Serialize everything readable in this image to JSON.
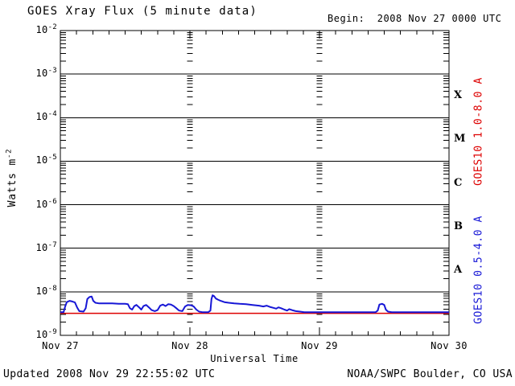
{
  "header": {
    "title": "GOES Xray Flux (5 minute data)",
    "begin": "Begin:  2008 Nov 27 0000 UTC"
  },
  "footer": {
    "updated": "Updated 2008 Nov 29 22:55:02 UTC",
    "source": "NOAA/SWPC Boulder, CO USA"
  },
  "chart_data": {
    "type": "line",
    "title": "GOES Xray Flux (5 minute data)",
    "xlabel": "Universal Time",
    "ylabel_base": "Watts m",
    "ylabel_exp": "-2",
    "grid": "horizontal-solid, log-minor-tick-columns-at-day-boundaries",
    "legend_position": "right-rotated",
    "x_axis": {
      "range_hours": 72,
      "minor_tick_hours": 3,
      "ticks": [
        {
          "label": "Nov 27",
          "hour": 0
        },
        {
          "label": "Nov 28",
          "hour": 24
        },
        {
          "label": "Nov 29",
          "hour": 48
        },
        {
          "label": "Nov 30",
          "hour": 72
        }
      ]
    },
    "y_axis": {
      "scale": "log",
      "max_exp": -2,
      "min_exp": -9,
      "tick_base": "10",
      "tick_exponents": [
        "-2",
        "-3",
        "-4",
        "-5",
        "-6",
        "-7",
        "-8",
        "-9"
      ]
    },
    "flare_classes": [
      {
        "label": "X",
        "mid_exp": -3.5
      },
      {
        "label": "M",
        "mid_exp": -4.5
      },
      {
        "label": "C",
        "mid_exp": -5.5
      },
      {
        "label": "B",
        "mid_exp": -6.5
      },
      {
        "label": "A",
        "mid_exp": -7.5
      }
    ],
    "series": [
      {
        "name": "GOES10 1.0-8.0 A",
        "color": "#dd0000",
        "points": [
          [
            0,
            3.2e-09
          ],
          [
            72,
            3.2e-09
          ]
        ]
      },
      {
        "name": "GOES10 0.5-4.0 A",
        "color": "#1717d6",
        "points": [
          [
            0,
            3.4e-09
          ],
          [
            0.6,
            3.4e-09
          ],
          [
            0.9,
            4.6e-09
          ],
          [
            1.2,
            5.8e-09
          ],
          [
            1.7,
            6.2e-09
          ],
          [
            2.2,
            6e-09
          ],
          [
            2.7,
            5.7e-09
          ],
          [
            3.1,
            4.4e-09
          ],
          [
            3.5,
            3.6e-09
          ],
          [
            4.3,
            3.5e-09
          ],
          [
            4.7,
            4.2e-09
          ],
          [
            5.0,
            6.8e-09
          ],
          [
            5.4,
            7.6e-09
          ],
          [
            5.8,
            7.8e-09
          ],
          [
            6.1,
            6.2e-09
          ],
          [
            6.5,
            5.6e-09
          ],
          [
            7.2,
            5.4e-09
          ],
          [
            8.4,
            5.4e-09
          ],
          [
            9.6,
            5.4e-09
          ],
          [
            10.8,
            5.3e-09
          ],
          [
            12.0,
            5.3e-09
          ],
          [
            12.5,
            5.2e-09
          ],
          [
            12.9,
            4.2e-09
          ],
          [
            13.3,
            3.9e-09
          ],
          [
            13.7,
            4.7e-09
          ],
          [
            14.1,
            5e-09
          ],
          [
            14.6,
            4.4e-09
          ],
          [
            15.0,
            3.9e-09
          ],
          [
            15.4,
            4.7e-09
          ],
          [
            15.9,
            5e-09
          ],
          [
            16.4,
            4.4e-09
          ],
          [
            16.9,
            3.8e-09
          ],
          [
            17.5,
            3.6e-09
          ],
          [
            18.0,
            3.8e-09
          ],
          [
            18.5,
            4.8e-09
          ],
          [
            19.0,
            5.1e-09
          ],
          [
            19.5,
            4.7e-09
          ],
          [
            20.0,
            5.2e-09
          ],
          [
            20.5,
            5.1e-09
          ],
          [
            21.0,
            4.7e-09
          ],
          [
            21.5,
            4.2e-09
          ],
          [
            22.0,
            3.7e-09
          ],
          [
            22.6,
            3.6e-09
          ],
          [
            23.1,
            4.6e-09
          ],
          [
            23.6,
            5e-09
          ],
          [
            24.2,
            4.9e-09
          ],
          [
            24.7,
            4.6e-09
          ],
          [
            25.2,
            3.9e-09
          ],
          [
            25.7,
            3.5e-09
          ],
          [
            26.3,
            3.4e-09
          ],
          [
            27.4,
            3.4e-09
          ],
          [
            27.8,
            3.7e-09
          ],
          [
            28.0,
            6.8e-09
          ],
          [
            28.2,
            8.3e-09
          ],
          [
            28.5,
            7.9e-09
          ],
          [
            28.8,
            7e-09
          ],
          [
            29.2,
            6.6e-09
          ],
          [
            29.7,
            6.2e-09
          ],
          [
            30.4,
            5.8e-09
          ],
          [
            31.2,
            5.6e-09
          ],
          [
            32.2,
            5.4e-09
          ],
          [
            33.2,
            5.3e-09
          ],
          [
            34.4,
            5.2e-09
          ],
          [
            35.6,
            5e-09
          ],
          [
            36.8,
            4.8e-09
          ],
          [
            37.6,
            4.6e-09
          ],
          [
            38.2,
            4.8e-09
          ],
          [
            38.8,
            4.5e-09
          ],
          [
            39.4,
            4.3e-09
          ],
          [
            40.0,
            4.1e-09
          ],
          [
            40.4,
            4.4e-09
          ],
          [
            40.9,
            4.2e-09
          ],
          [
            41.5,
            3.9e-09
          ],
          [
            42.0,
            3.7e-09
          ],
          [
            42.4,
            4e-09
          ],
          [
            42.9,
            3.8e-09
          ],
          [
            43.6,
            3.6e-09
          ],
          [
            44.4,
            3.5e-09
          ],
          [
            45.2,
            3.4e-09
          ],
          [
            48.0,
            3.4e-09
          ],
          [
            52.0,
            3.4e-09
          ],
          [
            56.0,
            3.4e-09
          ],
          [
            58.4,
            3.4e-09
          ],
          [
            58.8,
            3.7e-09
          ],
          [
            59.1,
            5.1e-09
          ],
          [
            59.6,
            5.3e-09
          ],
          [
            60.0,
            5e-09
          ],
          [
            60.3,
            3.9e-09
          ],
          [
            60.7,
            3.5e-09
          ],
          [
            61.4,
            3.4e-09
          ],
          [
            64.0,
            3.4e-09
          ],
          [
            68.0,
            3.4e-09
          ],
          [
            72.0,
            3.4e-09
          ]
        ]
      }
    ]
  }
}
